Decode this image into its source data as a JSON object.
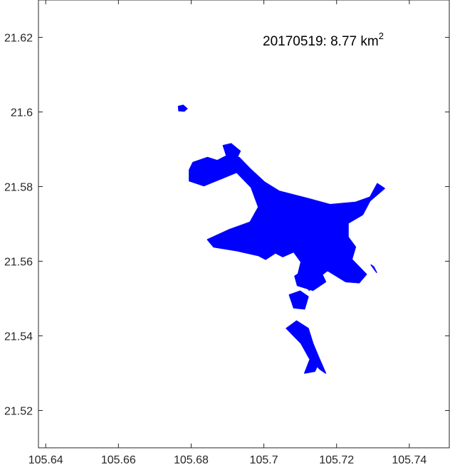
{
  "chart_data": {
    "type": "map",
    "title": "",
    "xlabel": "",
    "ylabel": "",
    "xlim": [
      105.638,
      105.751
    ],
    "ylim": [
      21.51,
      21.63
    ],
    "x_ticks": [
      "105.64",
      "105.66",
      "105.68",
      "105.7",
      "105.72",
      "105.74"
    ],
    "x_tick_values": [
      105.64,
      105.66,
      105.68,
      105.7,
      105.72,
      105.74
    ],
    "y_ticks": [
      "21.52",
      "21.54",
      "21.56",
      "21.58",
      "21.6",
      "21.62"
    ],
    "y_tick_values": [
      21.52,
      21.54,
      21.56,
      21.58,
      21.6,
      21.62
    ],
    "grid": false,
    "fill_color": "#0000ff",
    "annotation": {
      "date": "20170519",
      "separator": ": ",
      "value": "8.77",
      "unit": "km",
      "unit_exponent": "2"
    },
    "water_extent_outline": [
      [
        105.6795,
        21.5845
      ],
      [
        105.6795,
        21.5815
      ],
      [
        105.6835,
        21.5802
      ],
      [
        105.6875,
        21.5818
      ],
      [
        105.6925,
        21.5838
      ],
      [
        105.6965,
        21.5798
      ],
      [
        105.6985,
        21.5745
      ],
      [
        105.6962,
        21.5705
      ],
      [
        105.6905,
        21.5685
      ],
      [
        105.6845,
        21.5658
      ],
      [
        105.6862,
        21.5638
      ],
      [
        105.6925,
        21.5628
      ],
      [
        105.6985,
        21.5615
      ],
      [
        105.7005,
        21.5605
      ],
      [
        105.7032,
        21.5622
      ],
      [
        105.7052,
        21.5612
      ],
      [
        105.7082,
        21.5625
      ],
      [
        105.7102,
        21.5598
      ],
      [
        105.7093,
        21.5562
      ],
      [
        105.7115,
        21.5535
      ],
      [
        105.7125,
        21.5522
      ],
      [
        105.7135,
        21.5545
      ],
      [
        105.7175,
        21.5575
      ],
      [
        105.7225,
        21.5545
      ],
      [
        105.7262,
        21.5542
      ],
      [
        105.7282,
        21.5565
      ],
      [
        105.7242,
        21.5605
      ],
      [
        105.7252,
        21.5638
      ],
      [
        105.7232,
        21.5665
      ],
      [
        105.7232,
        21.5702
      ],
      [
        105.7272,
        21.5725
      ],
      [
        105.7292,
        21.5762
      ],
      [
        105.7332,
        21.5795
      ],
      [
        105.7312,
        21.5808
      ],
      [
        105.7292,
        21.5772
      ],
      [
        105.7252,
        21.5758
      ],
      [
        105.7182,
        21.5752
      ],
      [
        105.7122,
        21.5768
      ],
      [
        105.7042,
        21.5788
      ],
      [
        105.7002,
        21.5812
      ],
      [
        105.6962,
        21.5848
      ],
      [
        105.6932,
        21.5878
      ],
      [
        105.6902,
        21.5885
      ],
      [
        105.6872,
        21.587
      ],
      [
        105.6845,
        21.5878
      ],
      [
        105.6805,
        21.5865
      ]
    ],
    "water_extent_islands": [
      [
        [
          105.6765,
          21.6015
        ],
        [
          105.6778,
          21.6018
        ],
        [
          105.6789,
          21.6009
        ],
        [
          105.6781,
          21.6002
        ],
        [
          105.6766,
          21.6003
        ]
      ],
      [
        [
          105.6888,
          21.591
        ],
        [
          105.691,
          21.5915
        ],
        [
          105.6935,
          21.5895
        ],
        [
          105.6925,
          21.5875
        ],
        [
          105.6898,
          21.588
        ]
      ],
      [
        [
          105.7092,
          21.5535
        ],
        [
          105.7135,
          21.5522
        ],
        [
          105.717,
          21.5545
        ],
        [
          105.7158,
          21.557
        ],
        [
          105.7115,
          21.558
        ],
        [
          105.7085,
          21.556
        ]
      ],
      [
        [
          105.7082,
          21.5475
        ],
        [
          105.7112,
          21.5472
        ],
        [
          105.7122,
          21.5505
        ],
        [
          105.71,
          21.552
        ],
        [
          105.707,
          21.551
        ]
      ],
      [
        [
          105.7062,
          21.542
        ],
        [
          105.7102,
          21.538
        ],
        [
          105.7125,
          21.534
        ],
        [
          105.7155,
          21.531
        ],
        [
          105.717,
          21.53
        ],
        [
          105.7152,
          21.534
        ],
        [
          105.7135,
          21.538
        ],
        [
          105.7122,
          21.542
        ],
        [
          105.709,
          21.544
        ]
      ],
      [
        [
          105.7112,
          21.53
        ],
        [
          105.714,
          21.5305
        ],
        [
          105.7152,
          21.533
        ],
        [
          105.7128,
          21.534
        ]
      ],
      [
        [
          105.7295,
          21.559
        ],
        [
          105.731,
          21.557
        ],
        [
          105.7302,
          21.5585
        ]
      ]
    ]
  }
}
